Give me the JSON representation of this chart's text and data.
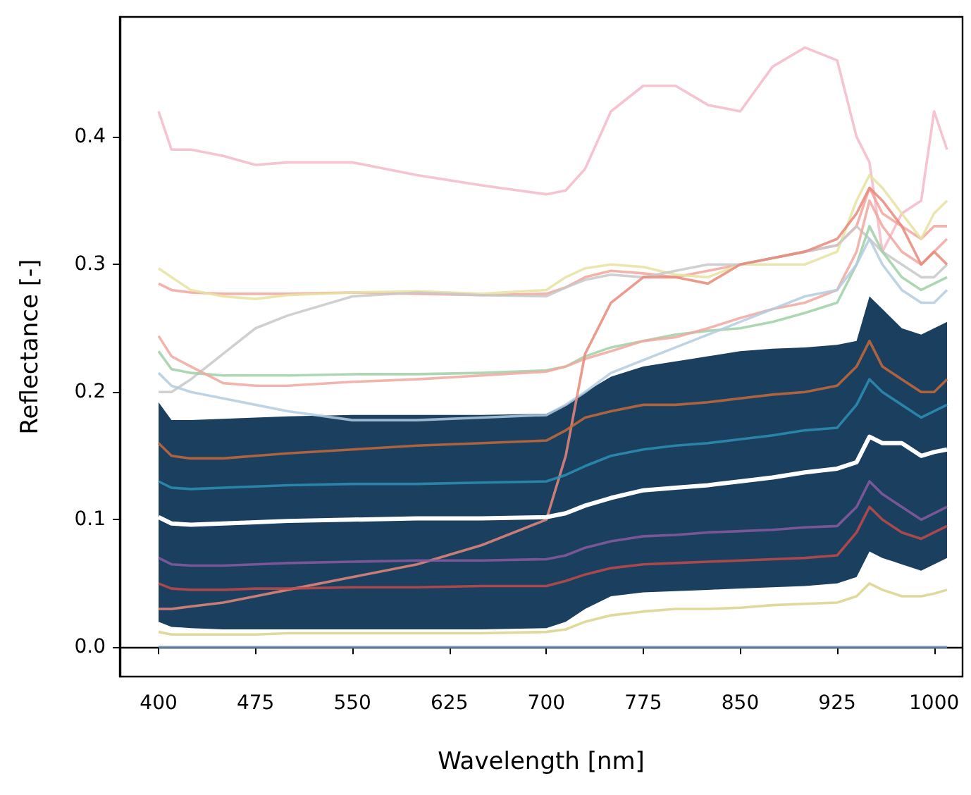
{
  "chart_data": {
    "type": "line",
    "xlabel": "Wavelength [nm]",
    "ylabel": "Reflectance [-]",
    "x": [
      400,
      410,
      425,
      450,
      475,
      500,
      550,
      600,
      650,
      700,
      715,
      730,
      750,
      775,
      800,
      825,
      850,
      875,
      900,
      925,
      940,
      950,
      960,
      975,
      990,
      1000,
      1010
    ],
    "series": [
      {
        "color": "#6f8fae",
        "values": [
          0,
          0,
          0,
          0,
          0,
          0,
          0,
          0,
          0,
          0,
          0,
          0,
          0,
          0,
          0,
          0,
          0,
          0,
          0,
          0,
          0,
          0,
          0,
          0,
          0,
          0,
          0
        ]
      },
      {
        "color": "#f4b8c8",
        "values": [
          0.42,
          0.39,
          0.39,
          0.385,
          0.378,
          0.38,
          0.38,
          0.37,
          0.362,
          0.355,
          0.358,
          0.375,
          0.42,
          0.44,
          0.44,
          0.425,
          0.42,
          0.455,
          0.47,
          0.46,
          0.4,
          0.38,
          0.31,
          0.34,
          0.35,
          0.42,
          0.39
        ]
      },
      {
        "color": "#f2a49c",
        "values": [
          0.285,
          0.28,
          0.278,
          0.277,
          0.277,
          0.277,
          0.278,
          0.277,
          0.276,
          0.277,
          0.282,
          0.29,
          0.295,
          0.293,
          0.29,
          0.295,
          0.3,
          0.305,
          0.31,
          0.315,
          0.33,
          0.36,
          0.34,
          0.33,
          0.32,
          0.33,
          0.33
        ]
      },
      {
        "color": "#e6e3a0",
        "values": [
          0.297,
          0.29,
          0.28,
          0.275,
          0.273,
          0.276,
          0.278,
          0.279,
          0.277,
          0.28,
          0.29,
          0.297,
          0.3,
          0.298,
          0.292,
          0.29,
          0.3,
          0.3,
          0.3,
          0.31,
          0.35,
          0.37,
          0.36,
          0.34,
          0.32,
          0.34,
          0.35
        ]
      },
      {
        "color": "#c8c8c8",
        "values": [
          0.2,
          0.2,
          0.21,
          0.23,
          0.25,
          0.26,
          0.275,
          0.278,
          0.276,
          0.275,
          0.282,
          0.288,
          0.292,
          0.29,
          0.295,
          0.3,
          0.3,
          0.305,
          0.31,
          0.315,
          0.33,
          0.32,
          0.31,
          0.3,
          0.29,
          0.29,
          0.3
        ]
      },
      {
        "color": "#9fd0a4",
        "values": [
          0.232,
          0.218,
          0.215,
          0.213,
          0.213,
          0.213,
          0.214,
          0.214,
          0.215,
          0.217,
          0.22,
          0.228,
          0.235,
          0.24,
          0.245,
          0.248,
          0.25,
          0.255,
          0.262,
          0.27,
          0.3,
          0.33,
          0.31,
          0.29,
          0.28,
          0.285,
          0.29
        ]
      },
      {
        "color": "#f0a8a0",
        "values": [
          0.244,
          0.228,
          0.22,
          0.207,
          0.205,
          0.205,
          0.208,
          0.21,
          0.213,
          0.216,
          0.22,
          0.226,
          0.232,
          0.24,
          0.243,
          0.25,
          0.258,
          0.265,
          0.27,
          0.28,
          0.31,
          0.35,
          0.33,
          0.31,
          0.3,
          0.31,
          0.32
        ]
      },
      {
        "color": "#b3cde0",
        "values": [
          0.215,
          0.205,
          0.2,
          0.195,
          0.19,
          0.185,
          0.178,
          0.178,
          0.18,
          0.182,
          0.19,
          0.2,
          0.215,
          0.225,
          0.235,
          0.245,
          0.255,
          0.265,
          0.275,
          0.28,
          0.3,
          0.32,
          0.3,
          0.28,
          0.27,
          0.27,
          0.28
        ]
      },
      {
        "color": "#e8887a",
        "values": [
          0.03,
          0.03,
          0.032,
          0.035,
          0.04,
          0.045,
          0.055,
          0.065,
          0.08,
          0.1,
          0.15,
          0.23,
          0.27,
          0.29,
          0.29,
          0.285,
          0.3,
          0.305,
          0.31,
          0.32,
          0.34,
          0.36,
          0.35,
          0.33,
          0.3,
          0.31,
          0.3
        ]
      },
      {
        "color": "#c76a3a",
        "values": [
          0.16,
          0.15,
          0.148,
          0.148,
          0.15,
          0.152,
          0.155,
          0.158,
          0.16,
          0.162,
          0.17,
          0.18,
          0.185,
          0.19,
          0.19,
          0.192,
          0.195,
          0.198,
          0.2,
          0.205,
          0.22,
          0.24,
          0.22,
          0.21,
          0.2,
          0.2,
          0.21
        ]
      },
      {
        "color": "#2d8fb5",
        "values": [
          0.13,
          0.125,
          0.124,
          0.125,
          0.126,
          0.127,
          0.128,
          0.128,
          0.129,
          0.13,
          0.135,
          0.142,
          0.15,
          0.155,
          0.158,
          0.16,
          0.163,
          0.166,
          0.17,
          0.172,
          0.19,
          0.21,
          0.2,
          0.19,
          0.18,
          0.185,
          0.19
        ]
      },
      {
        "color": "#8a5a9f",
        "values": [
          0.07,
          0.065,
          0.064,
          0.064,
          0.065,
          0.066,
          0.067,
          0.068,
          0.068,
          0.069,
          0.072,
          0.078,
          0.083,
          0.087,
          0.088,
          0.09,
          0.091,
          0.092,
          0.094,
          0.095,
          0.11,
          0.13,
          0.12,
          0.11,
          0.1,
          0.105,
          0.11
        ]
      },
      {
        "color": "#c24a4a",
        "values": [
          0.05,
          0.046,
          0.045,
          0.045,
          0.046,
          0.046,
          0.047,
          0.047,
          0.048,
          0.048,
          0.052,
          0.057,
          0.062,
          0.065,
          0.066,
          0.067,
          0.068,
          0.069,
          0.07,
          0.072,
          0.09,
          0.11,
          0.1,
          0.09,
          0.085,
          0.09,
          0.095
        ]
      },
      {
        "color": "#d9d48a",
        "values": [
          0.012,
          0.01,
          0.01,
          0.01,
          0.01,
          0.011,
          0.011,
          0.011,
          0.011,
          0.012,
          0.014,
          0.02,
          0.025,
          0.028,
          0.03,
          0.03,
          0.031,
          0.033,
          0.034,
          0.035,
          0.04,
          0.05,
          0.045,
          0.04,
          0.04,
          0.042,
          0.045
        ]
      },
      {
        "color": "#ffffff",
        "values": [
          0.102,
          0.097,
          0.096,
          0.097,
          0.098,
          0.099,
          0.1,
          0.101,
          0.101,
          0.102,
          0.105,
          0.111,
          0.117,
          0.123,
          0.125,
          0.127,
          0.13,
          0.133,
          0.137,
          0.14,
          0.145,
          0.165,
          0.16,
          0.16,
          0.15,
          0.153,
          0.155
        ],
        "lower": [
          0.02,
          0.016,
          0.015,
          0.014,
          0.014,
          0.014,
          0.014,
          0.014,
          0.014,
          0.015,
          0.02,
          0.03,
          0.04,
          0.043,
          0.044,
          0.045,
          0.046,
          0.047,
          0.048,
          0.05,
          0.055,
          0.075,
          0.07,
          0.065,
          0.06,
          0.065,
          0.07
        ],
        "upper": [
          0.192,
          0.178,
          0.178,
          0.179,
          0.18,
          0.181,
          0.182,
          0.182,
          0.182,
          0.183,
          0.19,
          0.2,
          0.212,
          0.22,
          0.224,
          0.228,
          0.232,
          0.234,
          0.235,
          0.237,
          0.24,
          0.275,
          0.265,
          0.25,
          0.245,
          0.25,
          0.255
        ]
      }
    ],
    "xlim": [
      370,
      1022
    ],
    "ylim": [
      -0.023,
      0.494
    ],
    "xticks": [
      400,
      475,
      550,
      625,
      700,
      775,
      850,
      925,
      1000
    ],
    "yticks": [
      {
        "value": 0,
        "label": "0.0"
      },
      0.1,
      0.2,
      0.3,
      0.4
    ],
    "marker": "none",
    "line_style": "solid"
  }
}
